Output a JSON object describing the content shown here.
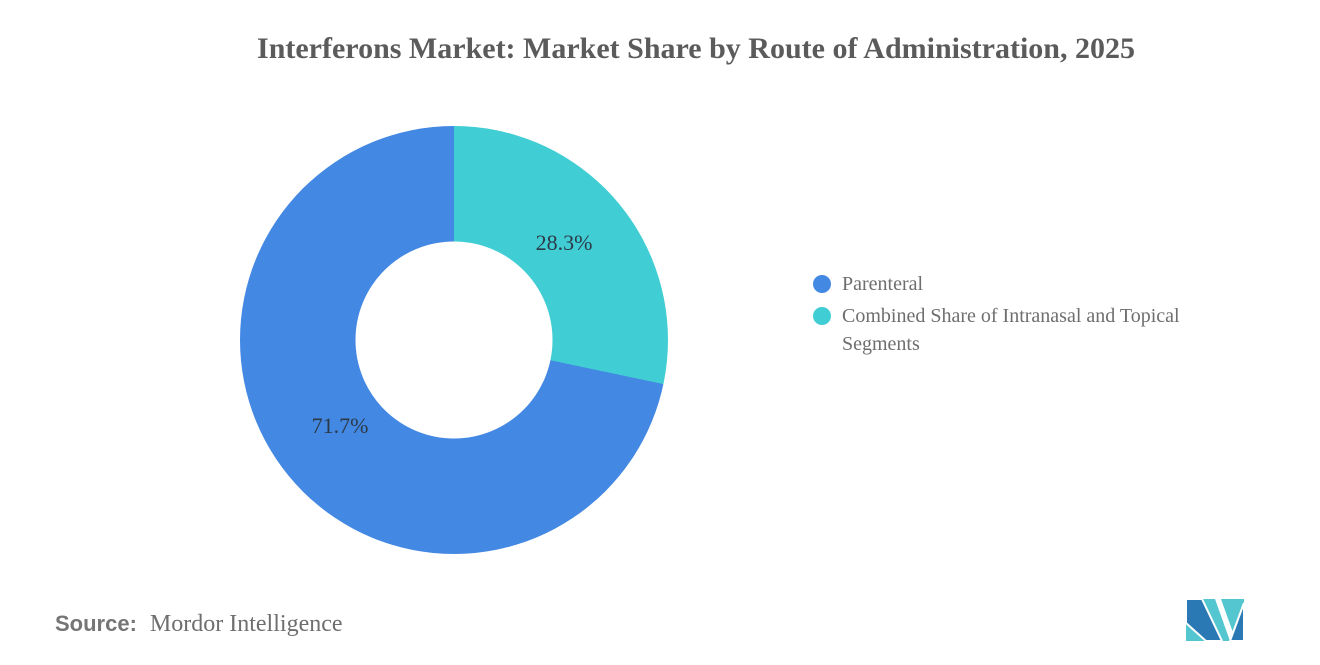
{
  "title": "Interferons Market: Market Share by Route of Administration, 2025",
  "chart_data": {
    "type": "pie",
    "subtype": "donut",
    "title": "Interferons Market: Market Share by Route of Administration, 2025",
    "unit": "%",
    "donut_hole_ratio": 0.46,
    "rotation_start": "top",
    "direction": "clockwise",
    "slices_clockwise_from_top": [
      {
        "label": "Combined Share of Intranasal and Topical Segments",
        "value": 28.3,
        "data_label": "28.3%",
        "color": "#40CED4"
      },
      {
        "label": "Parenteral",
        "value": 71.7,
        "data_label": "71.7%",
        "color": "#4388E3"
      }
    ],
    "legend": [
      {
        "label": "Parenteral",
        "color": "#4388E3"
      },
      {
        "label": "Combined Share of Intranasal and Topical Segments",
        "color": "#40CED4"
      }
    ],
    "legend_position": "right"
  },
  "source": {
    "label": "Source:",
    "value": "Mordor Intelligence"
  },
  "logo": {
    "name": "Mordor Intelligence logo",
    "blue_hex": "#2B79B4",
    "teal_hex": "#53C6CF"
  }
}
